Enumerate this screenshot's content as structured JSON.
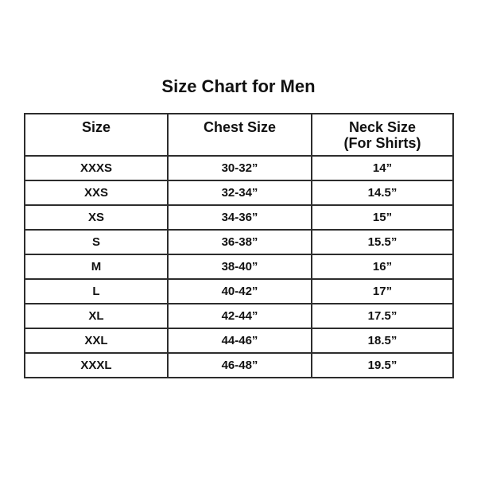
{
  "page": {
    "background": "#ffffff",
    "text_color": "#111111",
    "border_color": "#2d2d2d"
  },
  "chart_data": {
    "type": "table",
    "title": "Size Chart for Men",
    "columns": [
      {
        "label": "Size",
        "sublabel": ""
      },
      {
        "label": "Chest Size",
        "sublabel": ""
      },
      {
        "label": "Neck Size",
        "sublabel": "(For Shirts)"
      }
    ],
    "rows": [
      [
        "XXXS",
        "30-32”",
        "14”"
      ],
      [
        "XXS",
        "32-34”",
        "14.5”"
      ],
      [
        "XS",
        "34-36”",
        "15”"
      ],
      [
        "S",
        "36-38”",
        "15.5”"
      ],
      [
        "M",
        "38-40”",
        "16”"
      ],
      [
        "L",
        "40-42”",
        "17”"
      ],
      [
        "XL",
        "42-44”",
        "17.5”"
      ],
      [
        "XXL",
        "44-46”",
        "18.5”"
      ],
      [
        "XXXL",
        "46-48”",
        "19.5”"
      ]
    ]
  }
}
